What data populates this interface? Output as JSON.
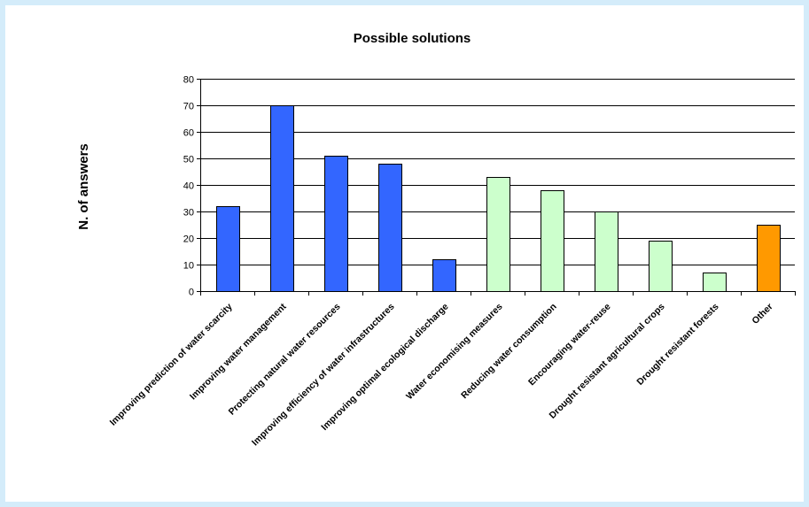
{
  "chart_data": {
    "type": "bar",
    "title": "Possible solutions",
    "xlabel": "",
    "ylabel": "N. of answers",
    "ylim": [
      0,
      80
    ],
    "yticks": [
      0,
      10,
      20,
      30,
      40,
      50,
      60,
      70,
      80
    ],
    "grid": true,
    "legend": false,
    "categories": [
      "Improving prediction of water scarcity",
      "Improving water management",
      "Protecting natural water resources",
      "Improving efficiency of water infrastructures",
      "Improving optimal ecological discharge",
      "Water economising measures",
      "Reducing water consumption",
      "Encouraging water-reuse",
      "Drought resistant agricultural crops",
      "Drought resistant forests",
      "Other"
    ],
    "values": [
      32,
      70,
      51,
      48,
      12,
      43,
      38,
      30,
      19,
      7,
      25
    ],
    "bar_colors": [
      "#3366ff",
      "#3366ff",
      "#3366ff",
      "#3366ff",
      "#3366ff",
      "#ccffcc",
      "#ccffcc",
      "#ccffcc",
      "#ccffcc",
      "#ccffcc",
      "#ff9900"
    ]
  }
}
